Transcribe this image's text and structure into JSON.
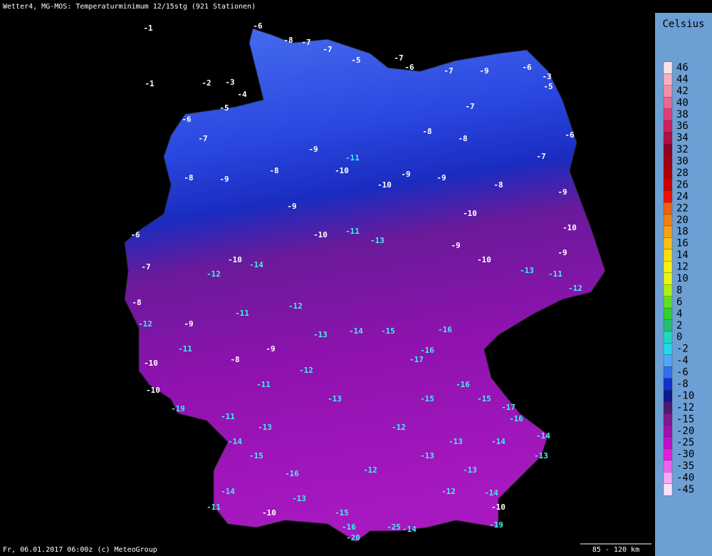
{
  "header": {
    "title": "Wetter4, MG-MOS: Temperaturminimum 12/15stg (921 Stationen)"
  },
  "footer": {
    "timestamp": "Fr, 06.01.2017 06:00z (c) MeteoGroup",
    "scale_bar": "85 - 120 km"
  },
  "legend": {
    "unit": "Celsius",
    "stops": [
      46,
      44,
      42,
      40,
      38,
      36,
      34,
      32,
      30,
      28,
      26,
      24,
      22,
      20,
      18,
      16,
      14,
      12,
      10,
      8,
      6,
      4,
      2,
      0,
      -2,
      -4,
      -6,
      -8,
      -10,
      -12,
      -15,
      -20,
      -25,
      -30,
      -35,
      -40,
      -45
    ],
    "colors": [
      "#ffe0e8",
      "#f8b0c0",
      "#f090a8",
      "#e86890",
      "#e04078",
      "#d02060",
      "#b01040",
      "#900020",
      "#a00010",
      "#b00000",
      "#d00000",
      "#f01000",
      "#f06010",
      "#f08010",
      "#f8a010",
      "#f8c010",
      "#f8e010",
      "#f8f010",
      "#e8f810",
      "#b0f010",
      "#60e020",
      "#30d030",
      "#20c070",
      "#20d8c0",
      "#20d8f0",
      "#50a8f8",
      "#3070f0",
      "#1030d0",
      "#101890",
      "#501870",
      "#801890",
      "#a010b0",
      "#c010c8",
      "#e020e0",
      "#f060f0",
      "#f8a8f8",
      "#fce0fc"
    ]
  },
  "stations": {
    "values": [
      -6,
      -8,
      -7,
      -7,
      -5,
      -7,
      -6,
      -1,
      -1,
      -2,
      -3,
      -4,
      -5,
      -6,
      -7,
      -8,
      -9,
      -6,
      -7,
      -8,
      -12,
      -10,
      -10,
      -19,
      -11,
      -9,
      -8,
      -11,
      -13,
      -14,
      -15,
      -16,
      -14,
      -11,
      -10,
      -20,
      -16,
      -25,
      -14,
      -19,
      -10,
      -14,
      -13,
      -14,
      -16,
      -17,
      -13,
      -15,
      -17,
      -16,
      -16,
      -15,
      -14,
      -13,
      -12,
      -11,
      -9,
      -13,
      -11,
      -10,
      -9,
      -8,
      -9,
      -10,
      -11,
      -10,
      -9,
      -8,
      -7,
      -6,
      -5,
      -3,
      -6,
      -7,
      -9,
      -10,
      -9,
      -11,
      -12,
      -13,
      -10,
      -9,
      -10,
      -9,
      -8,
      -7,
      -9,
      -8,
      -12,
      -13,
      -12,
      -11,
      -13,
      -12,
      -15,
      -13,
      -12,
      -13,
      -14,
      -16,
      -15,
      -10,
      -12,
      -14
    ]
  }
}
